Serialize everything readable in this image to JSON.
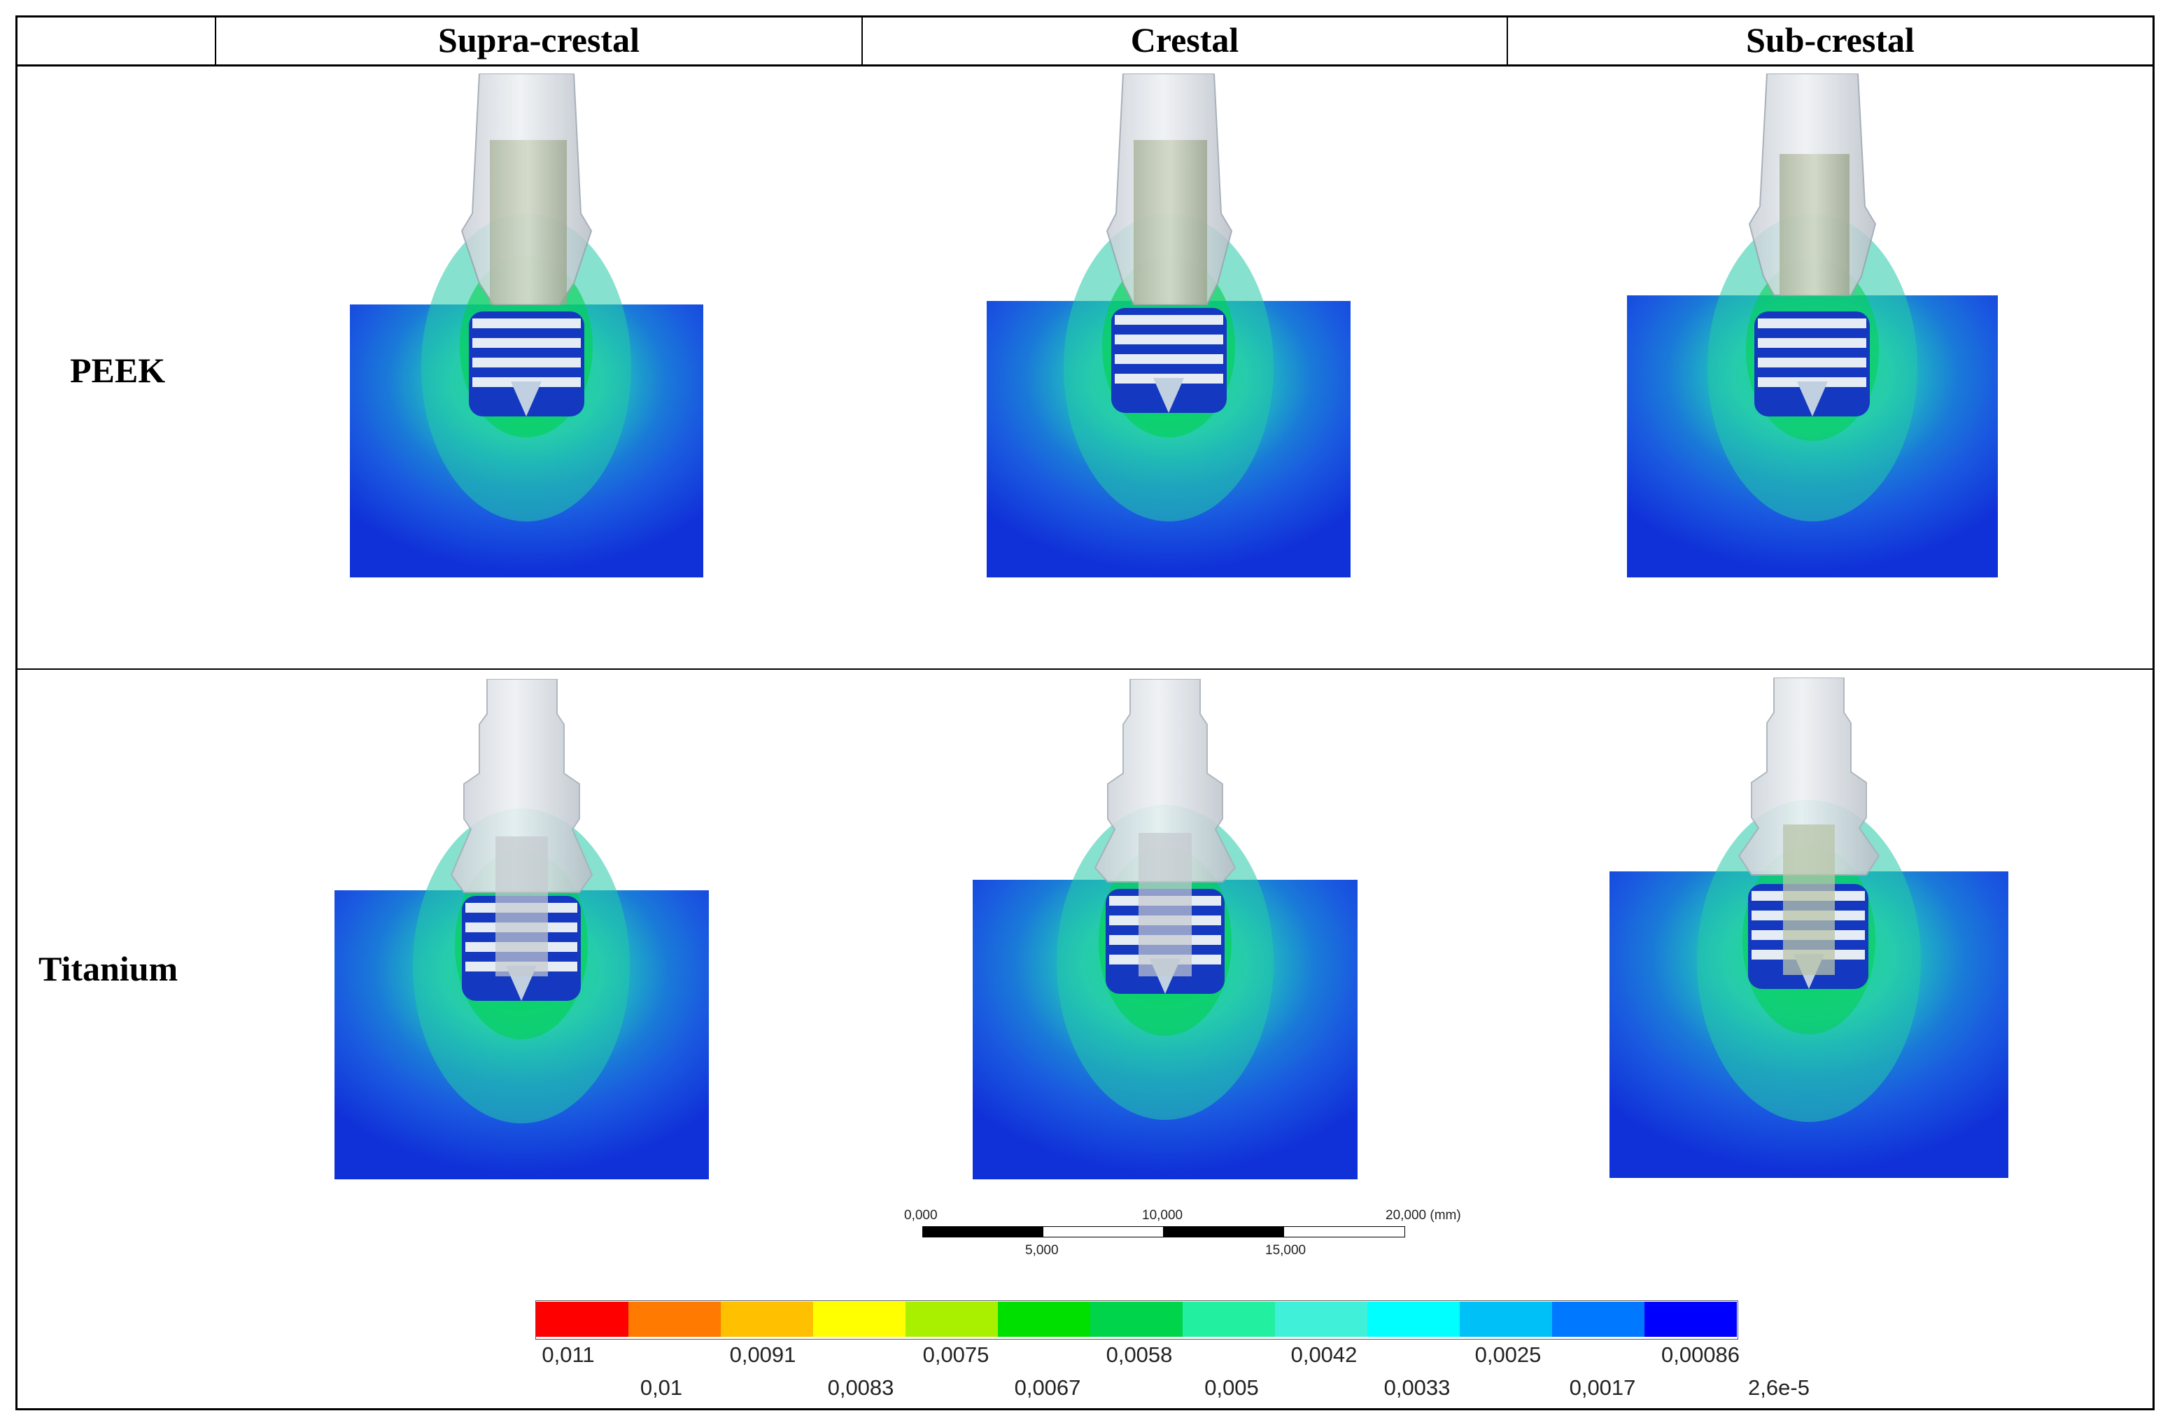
{
  "table": {
    "columns": [
      "",
      "Supra-crestal",
      "Crestal",
      "Sub-crestal"
    ],
    "rows": [
      {
        "label": "PEEK",
        "cells": [
          "Supra-crestal",
          "Crestal",
          "Sub-crestal"
        ]
      },
      {
        "label": "Titanium",
        "cells": [
          "Supra-crestal",
          "Crestal",
          "Sub-crestal"
        ]
      }
    ]
  },
  "scale_bar": {
    "top_labels": [
      "0,000",
      "10,000",
      "20,000 (mm)"
    ],
    "bottom_labels": [
      "5,000",
      "15,000"
    ]
  },
  "legend": {
    "colors": [
      "#ff0000",
      "#ff7a00",
      "#ffc000",
      "#ffff00",
      "#a8f000",
      "#00e000",
      "#00d44a",
      "#22f0a0",
      "#40f0d8",
      "#00ffff",
      "#00c0f8",
      "#0078ff",
      "#0000ff"
    ],
    "labels_row1": [
      "0,011",
      "0,0091",
      "0,0075",
      "0,0058",
      "0,0042",
      "0,0025",
      "0,00086"
    ],
    "labels_row2": [
      "0,01",
      "0,0083",
      "0,0067",
      "0,005",
      "0,0033",
      "0,0017",
      "2,6e-5"
    ]
  }
}
